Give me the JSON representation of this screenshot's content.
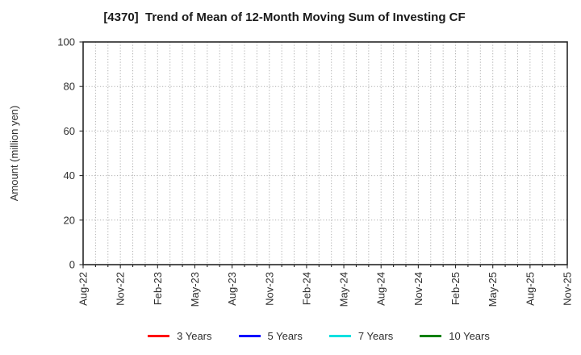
{
  "chart_data": {
    "type": "line",
    "title": "[4370]  Trend of Mean of 12-Month Moving Sum of Investing CF",
    "ylabel": "Amount (million yen)",
    "xlabel": "",
    "ylim": [
      0,
      100
    ],
    "yticks": [
      0,
      20,
      40,
      60,
      80,
      100
    ],
    "x_tick_labels": [
      "Aug-22",
      "Nov-22",
      "Feb-23",
      "May-23",
      "Aug-23",
      "Nov-23",
      "Feb-24",
      "May-24",
      "Aug-24",
      "Nov-24",
      "Feb-25",
      "May-25",
      "Aug-25",
      "Nov-25"
    ],
    "x_months_total": 39,
    "x_major_every_months": 3,
    "grid": "dotted",
    "legend_position": "bottom",
    "series": [
      {
        "name": "3 Years",
        "color": "#ff0000",
        "values": []
      },
      {
        "name": "5 Years",
        "color": "#0000ff",
        "values": []
      },
      {
        "name": "7 Years",
        "color": "#00e0e0",
        "values": []
      },
      {
        "name": "10 Years",
        "color": "#008000",
        "values": []
      }
    ]
  }
}
